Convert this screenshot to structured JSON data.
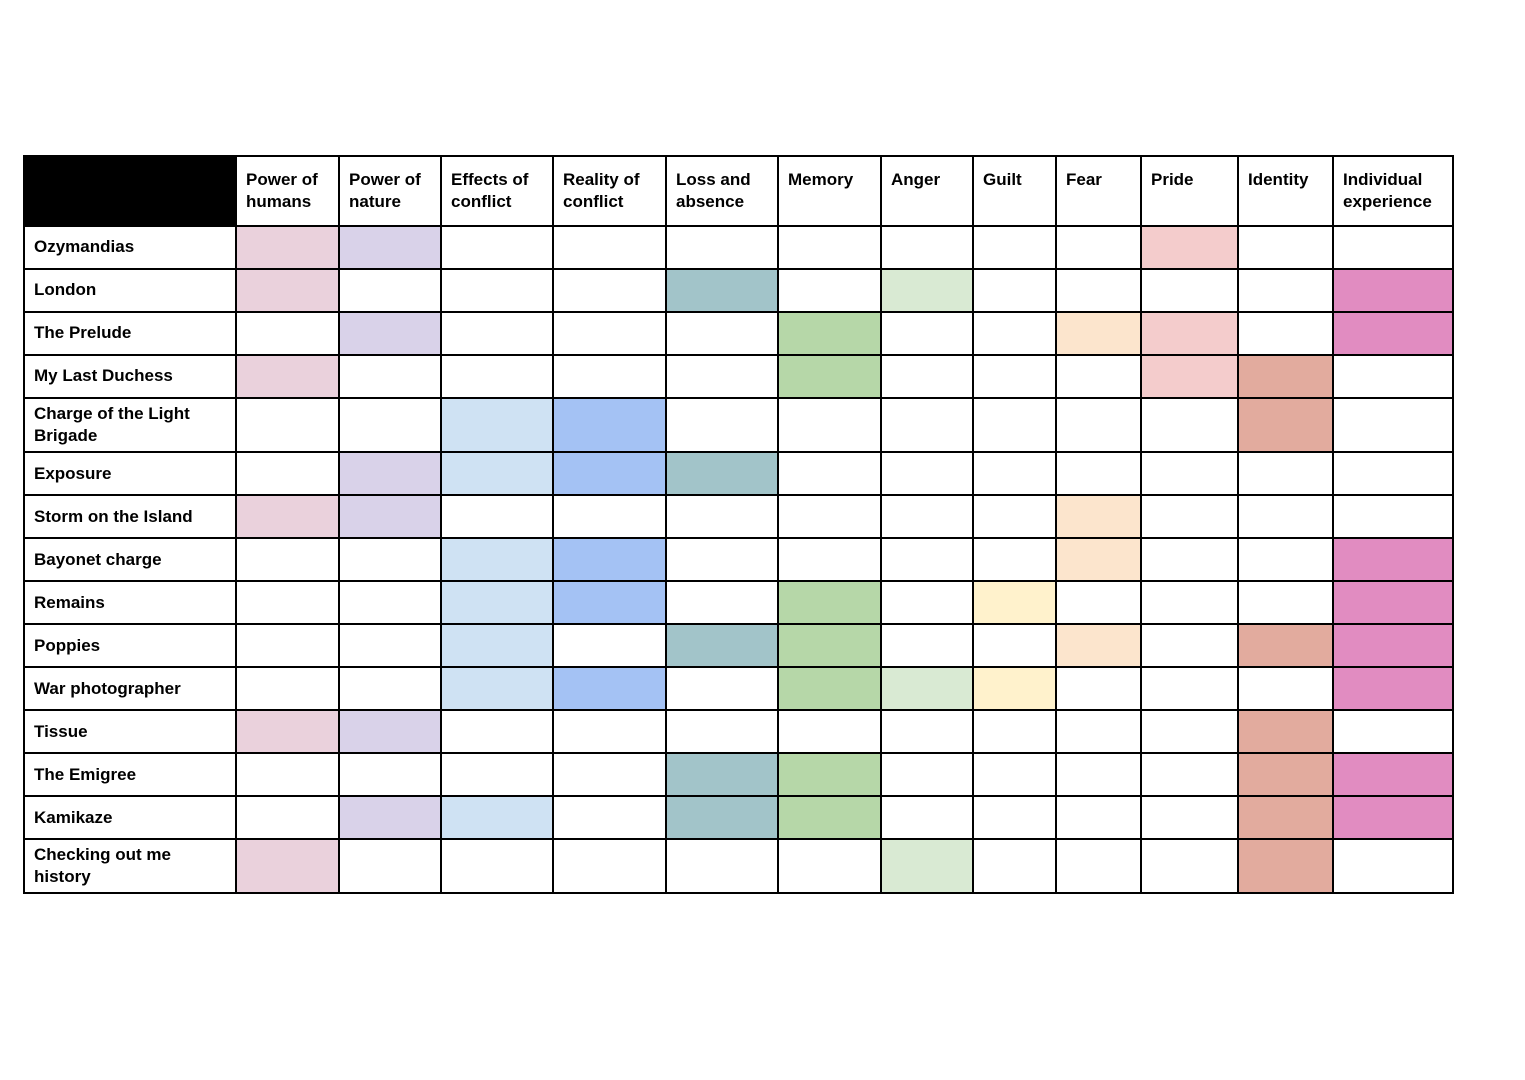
{
  "table": {
    "corner_fill": "#000000",
    "columns": [
      {
        "id": "power_humans",
        "label": "Power of humans",
        "color": "#ead1dc"
      },
      {
        "id": "power_nature",
        "label": "Power of nature",
        "color": "#d9d2e9"
      },
      {
        "id": "effects_conflict",
        "label": "Effects of conflict",
        "color": "#cfe2f3"
      },
      {
        "id": "reality_conflict",
        "label": "Reality of conflict",
        "color": "#a4c2f4"
      },
      {
        "id": "loss_absence",
        "label": "Loss and absence",
        "color": "#a2c4c9"
      },
      {
        "id": "memory",
        "label": "Memory",
        "color": "#b6d7a8"
      },
      {
        "id": "anger",
        "label": "Anger",
        "color": "#d9ead3"
      },
      {
        "id": "guilt",
        "label": "Guilt",
        "color": "#fff2cc"
      },
      {
        "id": "fear",
        "label": "Fear",
        "color": "#fce5cd"
      },
      {
        "id": "pride",
        "label": "Pride",
        "color": "#f4cccc"
      },
      {
        "id": "identity",
        "label": "Identity",
        "color": "#e2ab9e"
      },
      {
        "id": "individual",
        "label": "Individual experience",
        "color": "#e18cc1"
      }
    ],
    "rows": [
      {
        "label": "Ozymandias",
        "themes": [
          "power_humans",
          "power_nature",
          "pride"
        ]
      },
      {
        "label": "London",
        "themes": [
          "power_humans",
          "loss_absence",
          "anger",
          "individual"
        ]
      },
      {
        "label": "The Prelude",
        "themes": [
          "power_nature",
          "memory",
          "fear",
          "pride",
          "individual"
        ]
      },
      {
        "label": "My Last Duchess",
        "themes": [
          "power_humans",
          "memory",
          "pride",
          "identity"
        ]
      },
      {
        "label": "Charge of the Light Brigade",
        "themes": [
          "effects_conflict",
          "reality_conflict",
          "identity"
        ]
      },
      {
        "label": "Exposure",
        "themes": [
          "power_nature",
          "effects_conflict",
          "reality_conflict",
          "loss_absence"
        ]
      },
      {
        "label": "Storm on the Island",
        "themes": [
          "power_humans",
          "power_nature",
          "fear"
        ]
      },
      {
        "label": "Bayonet charge",
        "themes": [
          "effects_conflict",
          "reality_conflict",
          "fear",
          "individual"
        ]
      },
      {
        "label": "Remains",
        "themes": [
          "effects_conflict",
          "reality_conflict",
          "memory",
          "guilt",
          "individual"
        ]
      },
      {
        "label": "Poppies",
        "themes": [
          "effects_conflict",
          "loss_absence",
          "memory",
          "fear",
          "identity",
          "individual"
        ]
      },
      {
        "label": "War photographer",
        "themes": [
          "effects_conflict",
          "reality_conflict",
          "memory",
          "anger",
          "guilt",
          "individual"
        ]
      },
      {
        "label": "Tissue",
        "themes": [
          "power_humans",
          "power_nature",
          "identity"
        ]
      },
      {
        "label": "The Emigree",
        "themes": [
          "loss_absence",
          "memory",
          "identity",
          "individual"
        ]
      },
      {
        "label": "Kamikaze",
        "themes": [
          "power_nature",
          "effects_conflict",
          "loss_absence",
          "memory",
          "identity",
          "individual"
        ]
      },
      {
        "label": "Checking out me history",
        "themes": [
          "power_humans",
          "anger",
          "identity"
        ]
      }
    ]
  }
}
